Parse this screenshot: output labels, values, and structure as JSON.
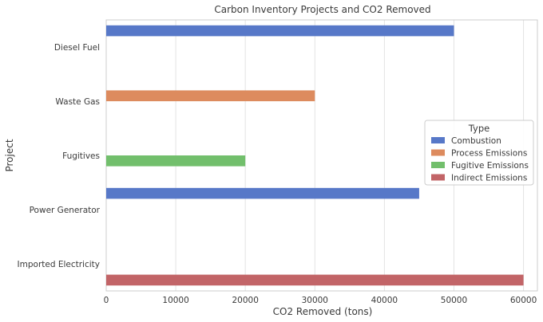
{
  "chart_data": {
    "type": "bar",
    "orientation": "horizontal",
    "title": "Carbon Inventory Projects and CO2 Removed",
    "xlabel": "CO2 Removed (tons)",
    "ylabel": "Project",
    "xlim": [
      0,
      62000
    ],
    "xticks": [
      0,
      10000,
      20000,
      30000,
      40000,
      50000,
      60000
    ],
    "grid": true,
    "categories": [
      "Diesel Fuel",
      "Waste Gas",
      "Fugitives",
      "Power Generator",
      "Imported Electricity"
    ],
    "series": [
      {
        "name": "Combustion",
        "color": "#5778c8",
        "values": [
          50000,
          null,
          null,
          45000,
          null
        ]
      },
      {
        "name": "Process Emissions",
        "color": "#dd8b5e",
        "values": [
          null,
          30000,
          null,
          null,
          null
        ]
      },
      {
        "name": "Fugitive Emissions",
        "color": "#72bf6c",
        "values": [
          null,
          null,
          20000,
          null,
          null
        ]
      },
      {
        "name": "Indirect Emissions",
        "color": "#c26467",
        "values": [
          null,
          null,
          null,
          null,
          60000
        ]
      }
    ],
    "legend": {
      "title": "Type",
      "placement": "center-right"
    }
  }
}
